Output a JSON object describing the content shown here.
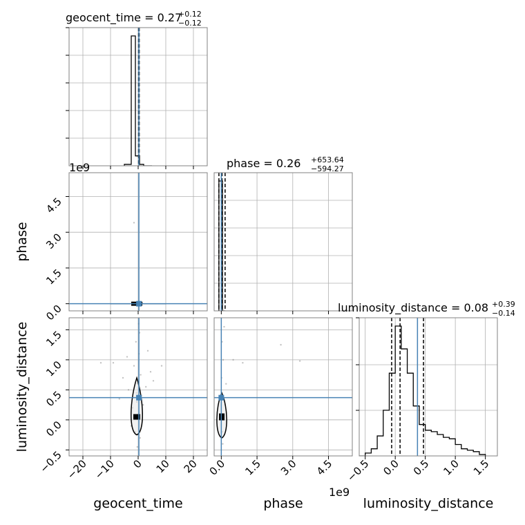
{
  "chart_data": {
    "type": "corner",
    "parameters": [
      "geocent_time",
      "phase",
      "luminosity_distance"
    ],
    "truth": {
      "geocent_time": 0.27,
      "phase": 0.26,
      "luminosity_distance": 0.37
    },
    "truth_color": "#4682b4",
    "titles": [
      {
        "name": "geocent_time",
        "median": "0.27",
        "plus": "+0.12",
        "minus": "−0.12"
      },
      {
        "name": "phase",
        "median": "0.26",
        "plus": "+653.64",
        "minus": "−594.27"
      },
      {
        "name": "luminosity_distance",
        "median": "0.08",
        "plus": "+0.39",
        "minus": "−0.14"
      }
    ],
    "axis_labels": {
      "x": [
        "geocent_time",
        "phase",
        "luminosity_distance"
      ],
      "y": [
        "phase",
        "luminosity_distance"
      ]
    },
    "offset_labels": {
      "phase_y": "1e9",
      "luminosity_distance_x": "1e9"
    },
    "ranges": {
      "geocent_time": [
        -25,
        25
      ],
      "phase": [
        -0.3,
        5.0
      ],
      "phase_scaled": [
        -0.3,
        5.5
      ],
      "luminosity_distance": [
        -0.6,
        1.7
      ]
    },
    "ticks": {
      "geocent_time": [
        "−20",
        "−10",
        "0",
        "10",
        "20"
      ],
      "geocent_time_values": [
        -20,
        -10,
        0,
        10,
        20
      ],
      "phase": [
        "0.0",
        "1.5",
        "3.0",
        "4.5"
      ],
      "phase_values": [
        0,
        1.5,
        3.0,
        4.5
      ],
      "luminosity_distance": [
        "−0.5",
        "0.0",
        "0.5",
        "1.0",
        "1.5"
      ],
      "luminosity_distance_values": [
        -0.5,
        0,
        0.5,
        1.0,
        1.5
      ]
    },
    "quantiles": {
      "geocent_time": [
        0.15,
        0.27,
        0.39
      ],
      "phase": [
        -0.1,
        0.03,
        0.16
      ],
      "luminosity_distance": [
        -0.06,
        0.08,
        0.47
      ]
    },
    "histograms": {
      "geocent_time": {
        "edges": [
          -5,
          -2.5,
          -1.0,
          0.5,
          2.0,
          5.0
        ],
        "counts": [
          0.01,
          0.92,
          0.07,
          0.01,
          0.0
        ]
      },
      "phase": {
        "edges": [
          -0.1,
          0.05,
          0.16
        ],
        "counts": [
          0.95,
          0.0
        ]
      },
      "luminosity_distance": {
        "edges": [
          -0.6,
          -0.5,
          -0.4,
          -0.3,
          -0.2,
          -0.1,
          0.0,
          0.1,
          0.2,
          0.3,
          0.4,
          0.5,
          0.6,
          0.7,
          0.8,
          0.9,
          1.0,
          1.1,
          1.2,
          1.3,
          1.4,
          1.5
        ],
        "counts": [
          0.0,
          0.02,
          0.05,
          0.14,
          0.32,
          0.58,
          0.91,
          0.75,
          0.58,
          0.35,
          0.22,
          0.18,
          0.17,
          0.15,
          0.13,
          0.12,
          0.08,
          0.05,
          0.04,
          0.03,
          0.01
        ]
      }
    },
    "scatter_points": {
      "geocent_vs_lumdist": [
        [
          -1.2,
          0.05
        ],
        [
          0.4,
          0.12
        ],
        [
          -0.5,
          0.3
        ],
        [
          1.2,
          0.4
        ],
        [
          -2.0,
          0.2
        ],
        [
          -0.2,
          0.6
        ],
        [
          0.9,
          0.75
        ],
        [
          -1.5,
          0.9
        ],
        [
          0.3,
          1.1
        ],
        [
          -0.8,
          1.3
        ],
        [
          0.5,
          1.45
        ],
        [
          -3.5,
          0.5
        ],
        [
          2.8,
          0.55
        ],
        [
          -5.5,
          0.7
        ],
        [
          4.5,
          0.8
        ],
        [
          -9.0,
          0.95
        ],
        [
          -13.5,
          0.95
        ],
        [
          5.5,
          0.65
        ],
        [
          8.5,
          0.9
        ],
        [
          -1.0,
          -0.2
        ],
        [
          0.7,
          -0.3
        ],
        [
          -0.3,
          -0.45
        ],
        [
          1.5,
          0.0
        ],
        [
          -2.5,
          -0.1
        ],
        [
          0.2,
          1.6
        ],
        [
          -4.0,
          1.05
        ],
        [
          3.5,
          1.15
        ],
        [
          -0.6,
          0.45
        ],
        [
          1.8,
          0.25
        ],
        [
          -6.8,
          0.35
        ]
      ],
      "phase_vs_lumdist": [
        [
          0.02,
          0.1
        ],
        [
          0.05,
          0.4
        ],
        [
          0.01,
          0.7
        ],
        [
          0.08,
          1.0
        ],
        [
          0.03,
          1.3
        ],
        [
          0.12,
          1.55
        ],
        [
          0.5,
          1.0
        ],
        [
          0.9,
          0.95
        ],
        [
          2.5,
          1.25
        ],
        [
          3.3,
          0.98
        ],
        [
          0.2,
          0.6
        ],
        [
          0.04,
          -0.2
        ],
        [
          0.06,
          -0.4
        ],
        [
          0.15,
          0.25
        ]
      ],
      "geocent_vs_phase": [
        [
          -1.5,
          3.4
        ],
        [
          0.5,
          0.02
        ],
        [
          -1.0,
          0.01
        ],
        [
          1.5,
          0.03
        ]
      ]
    }
  }
}
